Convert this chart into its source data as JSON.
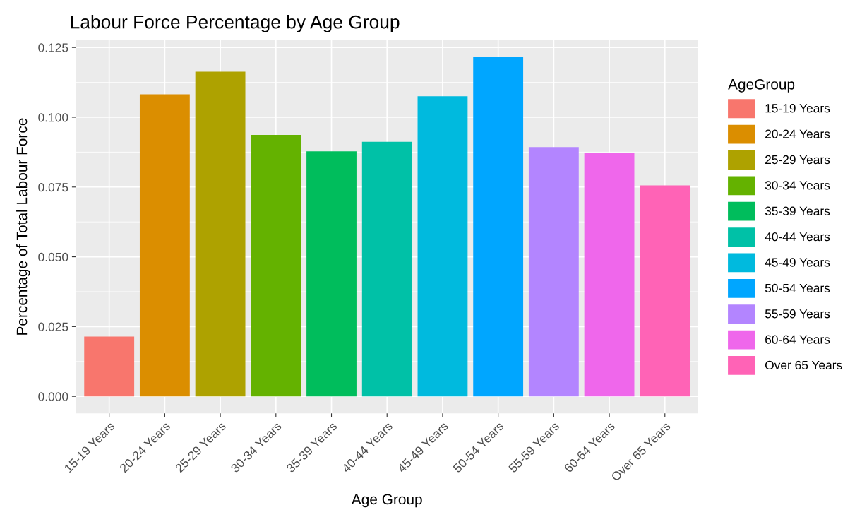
{
  "chart_data": {
    "type": "bar",
    "title": "Labour Force Percentage by Age Group",
    "xlabel": "Age Group",
    "ylabel": "Percentage of Total Labour Force",
    "legend_title": "AgeGroup",
    "categories": [
      "15-19 Years",
      "20-24 Years",
      "25-29 Years",
      "30-34 Years",
      "35-39 Years",
      "40-44 Years",
      "45-49 Years",
      "50-54 Years",
      "55-59 Years",
      "60-64 Years",
      "Over 65 Years"
    ],
    "series": [
      {
        "name": "15-19 Years",
        "color": "#f8766d",
        "values": [
          0.0214,
          null,
          null,
          null,
          null,
          null,
          null,
          null,
          null,
          null,
          null
        ]
      },
      {
        "name": "20-24 Years",
        "color": "#db8e00",
        "values": [
          null,
          0.1082,
          null,
          null,
          null,
          null,
          null,
          null,
          null,
          null,
          null
        ]
      },
      {
        "name": "25-29 Years",
        "color": "#aea200",
        "values": [
          null,
          null,
          0.1163,
          null,
          null,
          null,
          null,
          null,
          null,
          null,
          null
        ]
      },
      {
        "name": "30-34 Years",
        "color": "#64b200",
        "values": [
          null,
          null,
          null,
          0.0937,
          null,
          null,
          null,
          null,
          null,
          null,
          null
        ]
      },
      {
        "name": "35-39 Years",
        "color": "#00bd5c",
        "values": [
          null,
          null,
          null,
          null,
          0.0878,
          null,
          null,
          null,
          null,
          null,
          null
        ]
      },
      {
        "name": "40-44 Years",
        "color": "#00c1a7",
        "values": [
          null,
          null,
          null,
          null,
          null,
          0.0912,
          null,
          null,
          null,
          null,
          null
        ]
      },
      {
        "name": "45-49 Years",
        "color": "#00bade",
        "values": [
          null,
          null,
          null,
          null,
          null,
          null,
          0.1075,
          null,
          null,
          null,
          null
        ]
      },
      {
        "name": "50-54 Years",
        "color": "#00a6ff",
        "values": [
          null,
          null,
          null,
          null,
          null,
          null,
          null,
          0.1215,
          null,
          null,
          null
        ]
      },
      {
        "name": "55-59 Years",
        "color": "#b385ff",
        "values": [
          null,
          null,
          null,
          null,
          null,
          null,
          null,
          null,
          0.0893,
          null,
          null
        ]
      },
      {
        "name": "60-64 Years",
        "color": "#ef67eb",
        "values": [
          null,
          null,
          null,
          null,
          null,
          null,
          null,
          null,
          null,
          0.0871,
          null
        ]
      },
      {
        "name": "Over 65 Years",
        "color": "#ff63b6",
        "values": [
          null,
          null,
          null,
          null,
          null,
          null,
          null,
          null,
          null,
          null,
          0.0756
        ]
      }
    ],
    "ylim": [
      -0.0061,
      0.1276
    ],
    "yticks": [
      {
        "value": 0,
        "label": "0.000"
      },
      {
        "value": 0.025,
        "label": "0.025"
      },
      {
        "value": 0.05,
        "label": "0.050"
      },
      {
        "value": 0.075,
        "label": "0.075"
      },
      {
        "value": 0.1,
        "label": "0.100"
      },
      {
        "value": 0.125,
        "label": "0.125"
      }
    ],
    "grid": true,
    "legend": "right"
  }
}
